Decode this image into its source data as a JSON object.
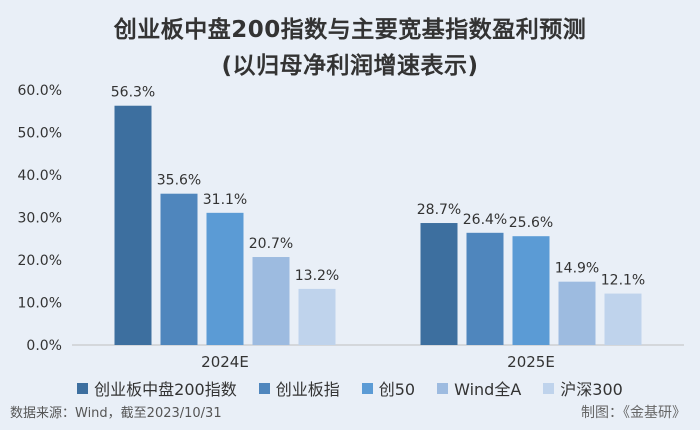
{
  "colors": {
    "background": "#e9eff7",
    "axis": "#bfbfbf",
    "text": "#333333"
  },
  "title_line1": "创业板中盘200指数与主要宽基指数盈利预测",
  "title_line2": "(以归母净利润增速表示)",
  "source": "数据来源：Wind，截至2023/10/31",
  "credit": "制图：《金基研》",
  "chart_data": {
    "type": "bar",
    "title": "创业板中盘200指数与主要宽基指数盈利预测 (以归母净利润增速表示)",
    "categories": [
      "2024E",
      "2025E"
    ],
    "series": [
      {
        "name": "创业板中盘200指数",
        "color": "#3d6f9f",
        "values": [
          56.3,
          28.7
        ]
      },
      {
        "name": "创业板指",
        "color": "#4f86bd",
        "values": [
          35.6,
          26.4
        ]
      },
      {
        "name": "创50",
        "color": "#5b9bd5",
        "values": [
          31.1,
          25.6
        ]
      },
      {
        "name": "Wind全A",
        "color": "#9dbbe0",
        "values": [
          20.7,
          14.9
        ]
      },
      {
        "name": "沪深300",
        "color": "#bfd3ec",
        "values": [
          13.2,
          12.1
        ]
      }
    ],
    "value_labels": [
      [
        "56.3%",
        "28.7%"
      ],
      [
        "35.6%",
        "26.4%"
      ],
      [
        "31.1%",
        "25.6%"
      ],
      [
        "20.7%",
        "14.9%"
      ],
      [
        "13.2%",
        "12.1%"
      ]
    ],
    "y_ticks": [
      0,
      10,
      20,
      30,
      40,
      50,
      60
    ],
    "y_tick_labels": [
      "0.0%",
      "10.0%",
      "20.0%",
      "30.0%",
      "40.0%",
      "50.0%",
      "60.0%"
    ],
    "ylim": [
      0,
      60
    ],
    "grid": false,
    "legend": "bottom"
  }
}
